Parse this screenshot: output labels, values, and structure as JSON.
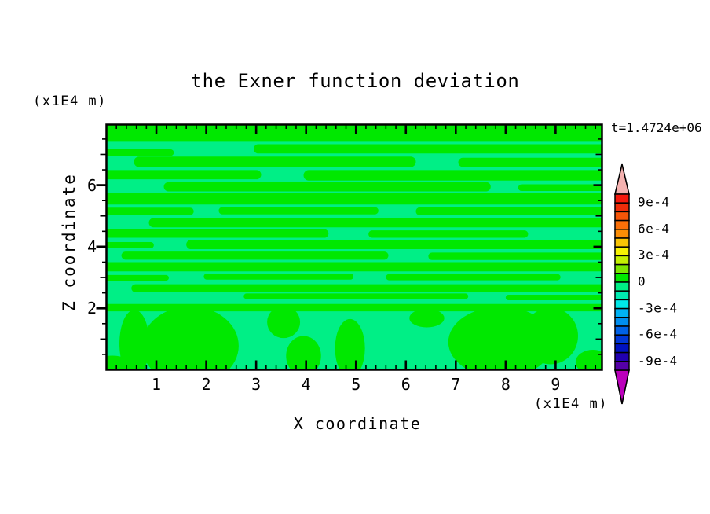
{
  "figure": {
    "title": "the Exner function deviation",
    "time_label": "t=1.4724e+06"
  },
  "axes": {
    "x": {
      "label": "X coordinate",
      "unit": "(x1E4 m)",
      "major_ticks": [
        1,
        2,
        3,
        4,
        5,
        6,
        7,
        8,
        9
      ],
      "minor_step": 0.2,
      "range": [
        0,
        9.93
      ]
    },
    "z": {
      "label": "Z coordinate",
      "unit": "(x1E4 m)",
      "major_ticks": [
        2,
        4,
        6
      ],
      "minor_step": 0.5,
      "range": [
        0,
        7.97
      ]
    }
  },
  "colorbar": {
    "tick_labels": [
      "9e-4",
      "6e-4",
      "3e-4",
      "0",
      "-3e-4",
      "-6e-4",
      "-9e-4"
    ],
    "segment_colors_top_to_bottom": [
      "#f5190d",
      "#ef2d0a",
      "#f65608",
      "#fa7008",
      "#fa8d06",
      "#f8c405",
      "#f6f203",
      "#c4f102",
      "#7ce701",
      "#00e800",
      "#00ef86",
      "#00ecb1",
      "#00e8e8",
      "#00b2f5",
      "#008eef",
      "#0062e7",
      "#0037d7",
      "#0012c1",
      "#2100b1",
      "#5500a7"
    ],
    "value_top": "1e-3",
    "value_bottom": "-1e-3",
    "segment_step": "1e-4",
    "over_arrow_color": "#f5b2b0",
    "under_arrow_color": "#bb00bb"
  },
  "chart_data": {
    "type": "heatmap",
    "title": "the Exner function deviation",
    "xlabel": "X coordinate (x1E4 m)",
    "ylabel": "Z coordinate (x1E4 m)",
    "time_annotation": "t=1.4724e+06",
    "x_range": [
      0,
      9.93
    ],
    "z_range": [
      0,
      7.97
    ],
    "contour_levels": {
      "min": -0.001,
      "max": 0.001,
      "step": 0.0001
    },
    "field_colors": {
      "band_0_to_plus1e-4": "#00e800",
      "band_minus1e-4_to_0": "#00ef86"
    },
    "background_band": "band_minus1e-4_to_0",
    "green_streaks": [
      [
        0.0,
        9.93,
        7.72,
        0.62
      ],
      [
        2.95,
        9.93,
        7.18,
        0.3
      ],
      [
        0.0,
        1.35,
        7.06,
        0.22
      ],
      [
        0.55,
        6.2,
        6.76,
        0.34
      ],
      [
        7.05,
        9.93,
        6.74,
        0.3
      ],
      [
        0.0,
        3.1,
        6.34,
        0.3
      ],
      [
        3.95,
        9.93,
        6.32,
        0.34
      ],
      [
        1.15,
        7.7,
        5.95,
        0.3
      ],
      [
        8.25,
        9.93,
        5.92,
        0.22
      ],
      [
        0.0,
        9.93,
        5.56,
        0.38
      ],
      [
        0.0,
        1.75,
        5.15,
        0.24
      ],
      [
        2.25,
        5.45,
        5.17,
        0.24
      ],
      [
        6.2,
        9.93,
        5.15,
        0.26
      ],
      [
        0.85,
        9.93,
        4.78,
        0.3
      ],
      [
        0.0,
        4.45,
        4.43,
        0.28
      ],
      [
        5.25,
        8.45,
        4.41,
        0.24
      ],
      [
        0.0,
        0.95,
        4.05,
        0.2
      ],
      [
        1.6,
        9.93,
        4.07,
        0.3
      ],
      [
        0.3,
        5.65,
        3.71,
        0.26
      ],
      [
        6.45,
        9.93,
        3.69,
        0.24
      ],
      [
        0.0,
        9.93,
        3.35,
        0.3
      ],
      [
        0.0,
        1.25,
        2.99,
        0.18
      ],
      [
        1.95,
        4.95,
        3.03,
        0.2
      ],
      [
        5.6,
        9.1,
        3.01,
        0.2
      ],
      [
        0.5,
        9.93,
        2.65,
        0.26
      ],
      [
        2.75,
        7.25,
        2.39,
        0.18
      ],
      [
        8.0,
        9.93,
        2.35,
        0.18
      ],
      [
        0.0,
        9.93,
        2.02,
        0.24
      ]
    ],
    "green_blobs": [
      [
        0.12,
        0.14,
        0.4,
        0.32
      ],
      [
        0.56,
        0.85,
        0.3,
        1.1
      ],
      [
        1.68,
        0.78,
        0.97,
        1.28
      ],
      [
        3.55,
        1.55,
        0.33,
        0.52
      ],
      [
        3.95,
        0.45,
        0.35,
        0.65
      ],
      [
        4.88,
        0.7,
        0.3,
        0.95
      ],
      [
        6.42,
        1.68,
        0.35,
        0.3
      ],
      [
        7.9,
        0.9,
        1.05,
        1.15
      ],
      [
        8.9,
        1.1,
        0.55,
        0.92
      ],
      [
        9.75,
        0.25,
        0.35,
        0.4
      ]
    ]
  }
}
